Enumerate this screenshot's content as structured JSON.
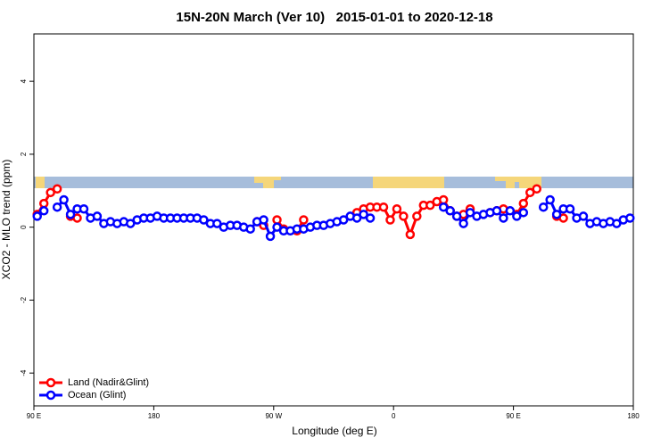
{
  "chart_data": {
    "type": "line",
    "title": "15N-20N March (Ver 10)   2015-01-01 to 2020-12-18",
    "x_label": "Longitude (deg E)",
    "y_label": "XCO2 - MLO trend (ppm)",
    "xlim": [
      90,
      540
    ],
    "ylim": [
      -4.9,
      5.3
    ],
    "xticks": [
      {
        "value": 90,
        "label": "90 E"
      },
      180,
      {
        "value": 270,
        "label": "90 W"
      },
      {
        "value": 360,
        "label": "0"
      },
      {
        "value": 450,
        "label": "90 E"
      },
      {
        "value": 540,
        "label": "180"
      }
    ],
    "yticks": [
      -4,
      -2,
      0,
      2,
      4
    ],
    "legend": "bottomleft",
    "x": [
      92.5,
      97.5,
      102.5,
      107.5,
      112.5,
      117.5,
      122.5,
      127.5,
      132.5,
      137.5,
      142.5,
      147.5,
      152.5,
      157.5,
      162.5,
      167.5,
      172.5,
      177.5,
      182.5,
      187.5,
      192.5,
      197.5,
      202.5,
      207.5,
      212.5,
      217.5,
      222.5,
      227.5,
      232.5,
      237.5,
      242.5,
      247.5,
      252.5,
      257.5,
      262.5,
      267.5,
      272.5,
      277.5,
      282.5,
      287.5,
      292.5,
      297.5,
      302.5,
      307.5,
      312.5,
      317.5,
      322.5,
      327.5,
      332.5,
      337.5,
      342.5,
      347.5,
      352.5,
      357.5,
      362.5,
      367.5,
      372.5,
      377.5,
      382.5,
      387.5,
      392.5,
      397.5,
      402.5,
      407.5,
      412.5,
      417.5,
      422.5,
      427.5,
      432.5,
      437.5,
      442.5,
      447.5,
      452.5,
      457.5,
      462.5,
      467.5,
      472.5,
      477.5,
      482.5,
      487.5,
      492.5,
      497.5,
      502.5,
      507.5,
      512.5,
      517.5,
      522.5,
      527.5,
      532.5,
      537.5
    ],
    "series": [
      {
        "name": "Land (Nadir&Glint)",
        "color": "#ff0000",
        "values": [
          0.35,
          0.65,
          0.95,
          1.05,
          null,
          0.3,
          0.25,
          null,
          null,
          null,
          null,
          null,
          null,
          null,
          null,
          null,
          null,
          null,
          null,
          null,
          null,
          null,
          null,
          null,
          null,
          null,
          null,
          null,
          null,
          null,
          null,
          null,
          null,
          0.15,
          0.05,
          null,
          0.2,
          -0.05,
          null,
          -0.1,
          0.2,
          null,
          null,
          null,
          null,
          null,
          null,
          null,
          0.4,
          0.5,
          0.55,
          0.55,
          0.55,
          0.2,
          0.5,
          0.3,
          -0.2,
          0.3,
          0.6,
          0.6,
          0.7,
          0.75,
          0.45,
          0.3,
          0.35,
          0.5,
          null,
          null,
          0.4,
          0.45,
          0.5,
          null,
          0.35,
          0.65,
          0.95,
          1.05,
          null,
          null,
          0.3,
          0.25,
          null,
          null,
          null,
          null,
          null,
          null,
          null,
          null,
          null,
          null
        ]
      },
      {
        "name": "Ocean (Glint)",
        "color": "#0000ff",
        "values": [
          0.3,
          0.45,
          null,
          0.55,
          0.75,
          0.35,
          0.5,
          0.5,
          0.25,
          0.3,
          0.1,
          0.15,
          0.1,
          0.15,
          0.1,
          0.2,
          0.25,
          0.25,
          0.3,
          0.25,
          0.25,
          0.25,
          0.25,
          0.25,
          0.25,
          0.2,
          0.1,
          0.1,
          0.0,
          0.05,
          0.05,
          0.0,
          -0.05,
          0.15,
          0.2,
          -0.25,
          0.0,
          -0.1,
          -0.1,
          -0.05,
          -0.05,
          0.0,
          0.05,
          0.05,
          0.1,
          0.15,
          0.2,
          0.3,
          0.25,
          0.35,
          0.25,
          null,
          null,
          null,
          null,
          null,
          null,
          null,
          null,
          null,
          null,
          0.55,
          0.45,
          0.3,
          0.1,
          0.4,
          0.3,
          0.35,
          0.4,
          0.45,
          0.25,
          0.45,
          0.3,
          0.4,
          null,
          null,
          0.55,
          0.75,
          0.35,
          0.5,
          0.5,
          0.25,
          0.3,
          0.1,
          0.15,
          0.1,
          0.15,
          0.1,
          0.2,
          0.25
        ]
      }
    ]
  }
}
